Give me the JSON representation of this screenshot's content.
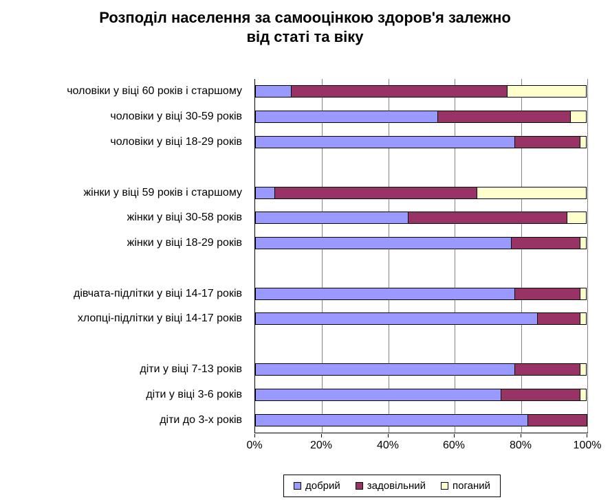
{
  "chart_data": {
    "type": "bar",
    "orientation": "horizontal",
    "stacked": true,
    "percent_stacked": true,
    "title": "Розподіл населення за самооцінкою здоров'я залежно\nвід статі та віку",
    "xlabel": "",
    "ylabel": "",
    "xlim": [
      0,
      100
    ],
    "x_ticks": [
      "0%",
      "20%",
      "40%",
      "60%",
      "80%",
      "100%"
    ],
    "grid": true,
    "legend_position": "bottom",
    "series_names": [
      "добрий",
      "задовільний",
      "поганий"
    ],
    "series_colors": [
      "#9999FF",
      "#993366",
      "#FFFFCC"
    ],
    "groups": [
      {
        "rows": [
          {
            "label": "чоловіки у віці 60 років і старшому",
            "values": [
              11,
              65,
              24
            ]
          },
          {
            "label": "чоловіки у віці 30-59 років",
            "values": [
              55,
              40,
              5
            ]
          },
          {
            "label": "чоловіки у віці 18-29 років",
            "values": [
              78,
              20,
              2
            ]
          }
        ]
      },
      {
        "rows": [
          {
            "label": "жінки у віці 59 років і старшому",
            "values": [
              6,
              61,
              33
            ]
          },
          {
            "label": "жінки у віці 30-58 років",
            "values": [
              46,
              48,
              6
            ]
          },
          {
            "label": "жінки у віці 18-29 років",
            "values": [
              77,
              21,
              2
            ]
          }
        ]
      },
      {
        "rows": [
          {
            "label": "дівчата-підлітки у віці 14-17 років",
            "values": [
              78,
              20,
              2
            ]
          },
          {
            "label": "хлопці-підлітки у віці 14-17 років",
            "values": [
              85,
              13,
              2
            ]
          }
        ]
      },
      {
        "rows": [
          {
            "label": "діти у віці 7-13 років",
            "values": [
              78,
              20,
              2
            ]
          },
          {
            "label": "діти у віці 3-6 років",
            "values": [
              74,
              24,
              2
            ]
          },
          {
            "label": "діти до 3-х років",
            "values": [
              82,
              18,
              0
            ]
          }
        ]
      }
    ]
  }
}
